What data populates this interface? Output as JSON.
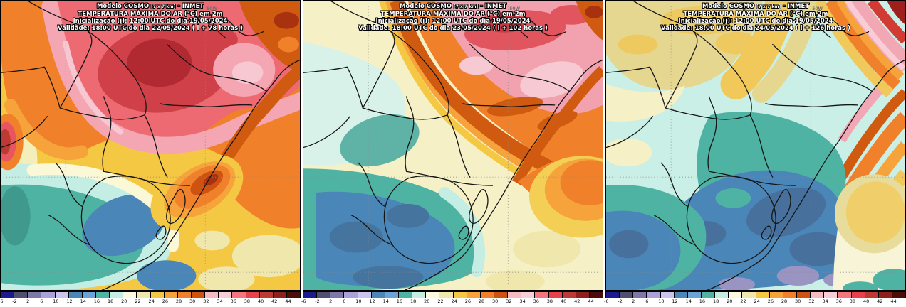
{
  "shared": {
    "model_prefix": "Modelo COSMO",
    "model_resolution": "[7 x 7 km]",
    "model_suffix": "- INMET",
    "variable_line": "TEMPERATURA MÁXIMA DO AR (°C) em 2m",
    "init_line": "Inicialização (i): 12:00 UTC do dia 19/05/2024",
    "meridian_label": "50W",
    "units": "°C"
  },
  "panels": [
    {
      "valid_date": "22/05/2024",
      "forecast_hour": "i + 78 horas",
      "validity_line": "Validade: 18:00 UTC do dia 22/05/2024 ( i + 78 horas )"
    },
    {
      "valid_date": "23/05/2024",
      "forecast_hour": "i + 102 horas",
      "validity_line": "Validade: 18:00 UTC do dia 23/05/2024 ( i + 102 horas )"
    },
    {
      "valid_date": "24/05/2024",
      "forecast_hour": "i + 126 horas",
      "validity_line": "Validade: 18:00 UTC do dia 24/05/2024 ( i + 126 horas )"
    }
  ],
  "colorbar": {
    "units": "°C",
    "tick_labels": [
      "-6",
      "-2",
      "2",
      "6",
      "10",
      "12",
      "14",
      "16",
      "18",
      "20",
      "22",
      "24",
      "26",
      "28",
      "30",
      "32",
      "34",
      "36",
      "38",
      "40",
      "42",
      "44"
    ],
    "segment_colors": [
      "#1b1b8f",
      "#50506e",
      "#7d78a8",
      "#a8a2d8",
      "#cbc5ee",
      "#4a86b8",
      "#6ba3d6",
      "#4fb3a4",
      "#c4eee3",
      "#fbfade",
      "#efe7ac",
      "#f5c843",
      "#f6a33c",
      "#f1802a",
      "#cf5310",
      "#f6bac3",
      "#f6ced5",
      "#f4757d",
      "#e8414b",
      "#bc3a33",
      "#8f1f1a",
      "#4c0d08"
    ]
  },
  "chart_data": {
    "type": "heatmap",
    "title": "Modelo COSMO [7 x 7 km] - INMET — TEMPERATURA MÁXIMA DO AR (°C) em 2m",
    "scale_boundaries_c": [
      -6,
      -2,
      2,
      6,
      10,
      12,
      14,
      16,
      18,
      20,
      22,
      24,
      26,
      28,
      30,
      32,
      34,
      36,
      38,
      40,
      42,
      44
    ],
    "legend_position": "bottom",
    "panel_summaries": [
      "22/05/2024 (i+78h): calor 30-38°C no norte (rosa/vermelho), frente fria com 12-18°C sobre Uruguai e sul",
      "23/05/2024 (i+102h): calor 30-36°C recuado para nordeste, ar frio 12-16°C avança sobre o sul",
      "24/05/2024 (i+126h): ar frio domina, 8-16°C no centro-sul, calor restrito ao litoral nordeste"
    ]
  }
}
